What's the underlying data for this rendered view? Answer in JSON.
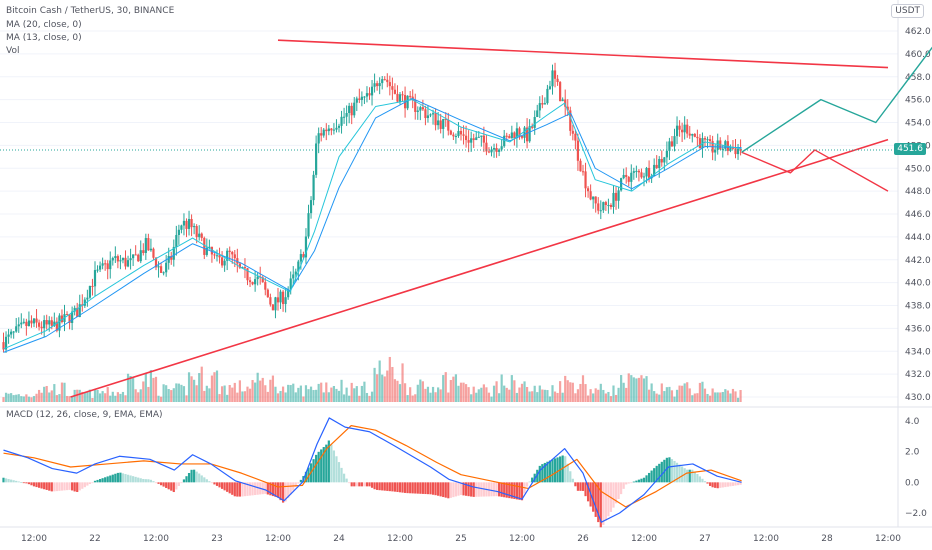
{
  "header": {
    "symbol_line": "Bitcoin Cash / TetherUS, 30, BINANCE",
    "ma20_label": "MA (20, close, 0)",
    "ma13_label": "MA (13, close, 0)",
    "vol_label": "Vol",
    "currency_badge": "USDT",
    "last_price": "451.6",
    "macd_label": "MACD (12, 26, close, 9, EMA, EMA)"
  },
  "colors": {
    "up": "#26a69a",
    "down": "#ef5350",
    "ma20": "#2196f3",
    "ma13": "#26c6da",
    "trend": "#f23645",
    "projection_green": "#26a69a",
    "macd_line": "#2962ff",
    "signal_line": "#ff6d00"
  },
  "chart_data": [
    {
      "type": "candlestick",
      "title": "Bitcoin Cash / TetherUS, 30, BINANCE",
      "y_ticks": [
        462.0,
        460.0,
        458.0,
        456.0,
        454.0,
        452.0,
        450.0,
        448.0,
        446.0,
        444.0,
        442.0,
        440.0,
        438.0,
        436.0,
        434.0,
        432.0,
        430.0
      ],
      "y_tick_labels": [
        "462.0",
        "460.0",
        "458.0",
        "456.0",
        "454.0",
        "452.0",
        "450.0",
        "448.0",
        "446.0",
        "444.0",
        "442.0",
        "440.0",
        "438.0",
        "436.0",
        "434.0",
        "432.0",
        "430.0"
      ],
      "ylim": [
        429.4,
        463.6
      ],
      "x_ticks": [
        "12:00",
        "22",
        "12:00",
        "23",
        "12:00",
        "24",
        "12:00",
        "25",
        "12:00",
        "26",
        "12:00",
        "27",
        "12:00",
        "28",
        "12:00"
      ],
      "x_range_days": [
        21.25,
        28.5
      ],
      "last_price": 451.6,
      "price_path": [
        [
          21.25,
          434.8
        ],
        [
          21.45,
          436.4
        ],
        [
          21.65,
          436.1
        ],
        [
          21.85,
          437.4
        ],
        [
          22.0,
          440.6
        ],
        [
          22.15,
          442.0
        ],
        [
          22.3,
          441.7
        ],
        [
          22.42,
          443.3
        ],
        [
          22.55,
          440.8
        ],
        [
          22.62,
          442.0
        ],
        [
          22.7,
          445.2
        ],
        [
          22.78,
          445.0
        ],
        [
          22.9,
          443.0
        ],
        [
          23.0,
          441.8
        ],
        [
          23.1,
          442.5
        ],
        [
          23.2,
          440.8
        ],
        [
          23.35,
          440.2
        ],
        [
          23.45,
          438.0
        ],
        [
          23.55,
          438.8
        ],
        [
          23.65,
          440.8
        ],
        [
          23.72,
          443.2
        ],
        [
          23.78,
          448.0
        ],
        [
          23.82,
          452.8
        ],
        [
          23.9,
          453.5
        ],
        [
          24.0,
          454.2
        ],
        [
          24.08,
          454.8
        ],
        [
          24.15,
          455.8
        ],
        [
          24.25,
          456.2
        ],
        [
          24.35,
          458.4
        ],
        [
          24.45,
          456.7
        ],
        [
          24.55,
          455.8
        ],
        [
          24.65,
          455.3
        ],
        [
          24.75,
          454.5
        ],
        [
          24.85,
          453.9
        ],
        [
          24.95,
          453.2
        ],
        [
          25.05,
          452.6
        ],
        [
          25.15,
          452.4
        ],
        [
          25.25,
          451.8
        ],
        [
          25.35,
          452.3
        ],
        [
          25.45,
          453.3
        ],
        [
          25.55,
          452.8
        ],
        [
          25.65,
          455.2
        ],
        [
          25.75,
          458.2
        ],
        [
          25.82,
          456.2
        ],
        [
          25.9,
          453.7
        ],
        [
          26.0,
          449.5
        ],
        [
          26.08,
          447.0
        ],
        [
          26.15,
          446.4
        ],
        [
          26.25,
          447.3
        ],
        [
          26.35,
          449.3
        ],
        [
          26.45,
          449.5
        ],
        [
          26.55,
          449.8
        ],
        [
          26.65,
          450.9
        ],
        [
          26.75,
          453.0
        ],
        [
          26.85,
          453.6
        ],
        [
          26.95,
          452.4
        ],
        [
          27.05,
          451.7
        ],
        [
          27.15,
          451.9
        ],
        [
          27.3,
          451.6
        ]
      ],
      "ma20": [
        [
          21.25,
          433.9
        ],
        [
          21.6,
          435.3
        ],
        [
          22.0,
          438.0
        ],
        [
          22.4,
          440.8
        ],
        [
          22.8,
          443.4
        ],
        [
          23.2,
          441.7
        ],
        [
          23.6,
          439.3
        ],
        [
          23.8,
          442.8
        ],
        [
          24.0,
          448.3
        ],
        [
          24.3,
          454.4
        ],
        [
          24.6,
          456.1
        ],
        [
          25.0,
          454.2
        ],
        [
          25.4,
          452.4
        ],
        [
          25.7,
          453.8
        ],
        [
          25.9,
          454.8
        ],
        [
          26.1,
          450.0
        ],
        [
          26.4,
          448.2
        ],
        [
          26.7,
          450.0
        ],
        [
          27.0,
          451.9
        ],
        [
          27.3,
          451.8
        ]
      ],
      "ma13": [
        [
          21.25,
          434.2
        ],
        [
          21.6,
          435.8
        ],
        [
          22.0,
          438.8
        ],
        [
          22.4,
          441.5
        ],
        [
          22.8,
          443.9
        ],
        [
          23.2,
          441.3
        ],
        [
          23.6,
          439.2
        ],
        [
          23.8,
          444.5
        ],
        [
          24.0,
          451.0
        ],
        [
          24.3,
          455.4
        ],
        [
          24.6,
          456.0
        ],
        [
          25.0,
          453.6
        ],
        [
          25.4,
          452.3
        ],
        [
          25.7,
          454.6
        ],
        [
          25.85,
          455.7
        ],
        [
          26.1,
          449.0
        ],
        [
          26.4,
          448.0
        ],
        [
          26.7,
          450.4
        ],
        [
          27.0,
          452.3
        ],
        [
          27.3,
          451.7
        ]
      ],
      "trendlines": [
        {
          "name": "resistance",
          "points": [
            [
              23.5,
              461.2
            ],
            [
              28.5,
              458.8
            ]
          ]
        },
        {
          "name": "support",
          "points": [
            [
              21.8,
              430.0
            ],
            [
              28.5,
              452.5
            ]
          ]
        }
      ],
      "projection_green": [
        [
          27.3,
          451.4
        ],
        [
          27.95,
          456.0
        ],
        [
          28.4,
          454.0
        ],
        [
          28.95,
          461.8
        ]
      ],
      "projection_red": [
        [
          27.3,
          451.4
        ],
        [
          27.7,
          449.6
        ],
        [
          27.9,
          451.6
        ],
        [
          28.5,
          448.0
        ]
      ],
      "volume_profile": [
        0.3,
        0.55,
        0.35,
        0.4,
        0.9,
        0.5,
        1.0,
        0.6,
        0.8,
        0.5,
        0.7,
        0.55,
        1.25,
        0.6,
        0.9,
        0.5,
        0.75,
        0.5,
        0.8,
        0.5,
        0.8,
        0.5,
        0.55,
        0.4
      ]
    },
    {
      "type": "line",
      "title": "MACD (12, 26, close, 9, EMA, EMA)",
      "y_ticks": [
        4.0,
        2.0,
        0.0,
        -2.0
      ],
      "y_tick_labels": [
        "4.0",
        "2.0",
        "0.0",
        "−2.0"
      ],
      "ylim": [
        -3.0,
        5.0
      ],
      "series": [
        {
          "role": "macd",
          "points": [
            [
              21.25,
              2.1
            ],
            [
              21.45,
              1.6
            ],
            [
              21.65,
              0.9
            ],
            [
              21.85,
              0.6
            ],
            [
              22.0,
              1.2
            ],
            [
              22.2,
              1.7
            ],
            [
              22.45,
              1.5
            ],
            [
              22.65,
              0.8
            ],
            [
              22.8,
              1.8
            ],
            [
              22.95,
              1.2
            ],
            [
              23.15,
              0.1
            ],
            [
              23.4,
              -0.5
            ],
            [
              23.55,
              -1.2
            ],
            [
              23.7,
              0.0
            ],
            [
              23.82,
              2.5
            ],
            [
              23.92,
              4.2
            ],
            [
              24.05,
              3.6
            ],
            [
              24.25,
              3.3
            ],
            [
              24.45,
              2.4
            ],
            [
              24.6,
              1.7
            ],
            [
              24.75,
              1.0
            ],
            [
              24.9,
              0.2
            ],
            [
              25.1,
              -0.3
            ],
            [
              25.3,
              -0.6
            ],
            [
              25.5,
              -1.1
            ],
            [
              25.65,
              0.8
            ],
            [
              25.85,
              2.2
            ],
            [
              26.0,
              0.6
            ],
            [
              26.15,
              -2.6
            ],
            [
              26.3,
              -2.0
            ],
            [
              26.5,
              -0.8
            ],
            [
              26.7,
              1.0
            ],
            [
              26.9,
              1.2
            ],
            [
              27.1,
              0.4
            ],
            [
              27.3,
              0.0
            ]
          ]
        },
        {
          "role": "signal",
          "points": [
            [
              21.25,
              1.9
            ],
            [
              21.5,
              1.6
            ],
            [
              21.8,
              1.0
            ],
            [
              22.1,
              1.2
            ],
            [
              22.4,
              1.4
            ],
            [
              22.7,
              1.2
            ],
            [
              22.95,
              1.2
            ],
            [
              23.2,
              0.6
            ],
            [
              23.5,
              -0.3
            ],
            [
              23.7,
              -0.2
            ],
            [
              23.9,
              2.2
            ],
            [
              24.1,
              3.7
            ],
            [
              24.3,
              3.4
            ],
            [
              24.55,
              2.4
            ],
            [
              24.8,
              1.3
            ],
            [
              25.0,
              0.5
            ],
            [
              25.3,
              0.0
            ],
            [
              25.55,
              -0.4
            ],
            [
              25.75,
              0.5
            ],
            [
              25.95,
              1.5
            ],
            [
              26.15,
              -0.6
            ],
            [
              26.35,
              -1.6
            ],
            [
              26.6,
              -0.6
            ],
            [
              26.85,
              0.6
            ],
            [
              27.05,
              0.8
            ],
            [
              27.3,
              0.1
            ]
          ]
        }
      ]
    }
  ]
}
